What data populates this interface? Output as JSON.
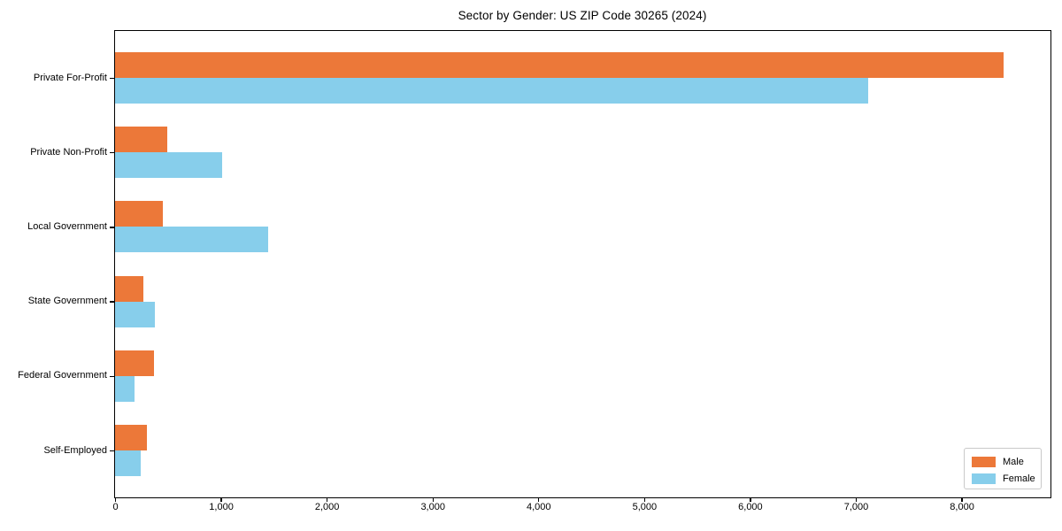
{
  "chart_data": {
    "type": "bar",
    "orientation": "horizontal",
    "title": "Sector by Gender: US ZIP Code 30265 (2024)",
    "categories": [
      "Private For-Profit",
      "Private Non-Profit",
      "Local Government",
      "State Government",
      "Federal Government",
      "Self-Employed"
    ],
    "series": [
      {
        "name": "Male",
        "color": "#EC7839",
        "values": [
          8400,
          490,
          450,
          270,
          370,
          300
        ]
      },
      {
        "name": "Female",
        "color": "#87CEEB",
        "values": [
          7120,
          1010,
          1450,
          375,
          180,
          240
        ]
      }
    ],
    "xlim": [
      0,
      8840
    ],
    "x_ticks": [
      0,
      1000,
      2000,
      3000,
      4000,
      5000,
      6000,
      7000,
      8000
    ],
    "x_tick_labels": [
      "0",
      "1,000",
      "2,000",
      "3,000",
      "4,000",
      "5,000",
      "6,000",
      "7,000",
      "8,000"
    ],
    "ylabel": "",
    "xlabel": "",
    "grid": false,
    "legend_position": "lower right",
    "background_color": "#ffffff",
    "spine_color": "#000000"
  }
}
